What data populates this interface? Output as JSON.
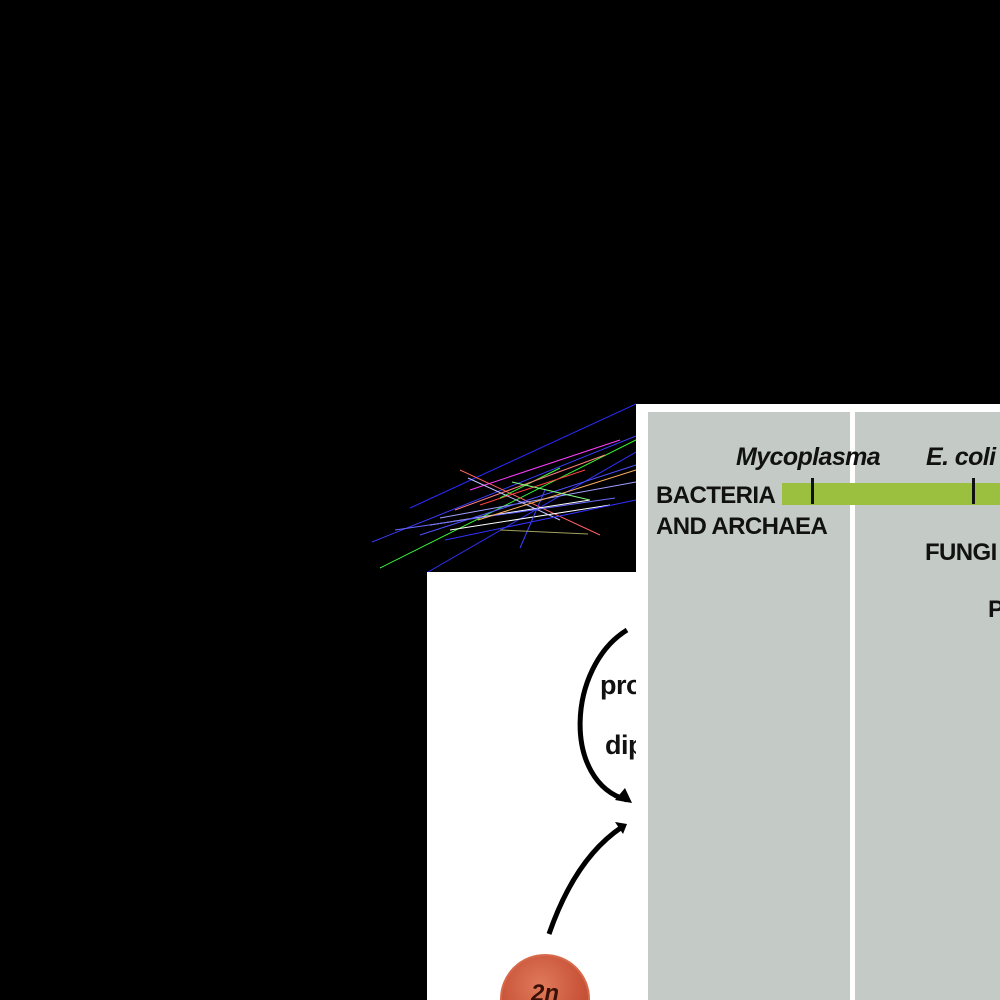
{
  "background": "#000000",
  "chart_data": {
    "type": "range-bar",
    "rows": [
      {
        "group": "BACTERIA AND ARCHAEA",
        "group_lines": [
          "BACTERIA",
          "AND ARCHAEA"
        ],
        "bar_color": "#9bbf3f",
        "markers": [
          {
            "name": "Mycoplasma"
          },
          {
            "name": "E. coli"
          }
        ]
      },
      {
        "group": "FUNGI",
        "partial_label": "FUNGI"
      },
      {
        "group": "P",
        "partial_label": "P"
      }
    ],
    "column_color": "#c4cbc6"
  },
  "life_cycle": {
    "labels": [
      "pro",
      "dip"
    ],
    "cell_label": "2n",
    "cell_color": "#c9553a"
  }
}
